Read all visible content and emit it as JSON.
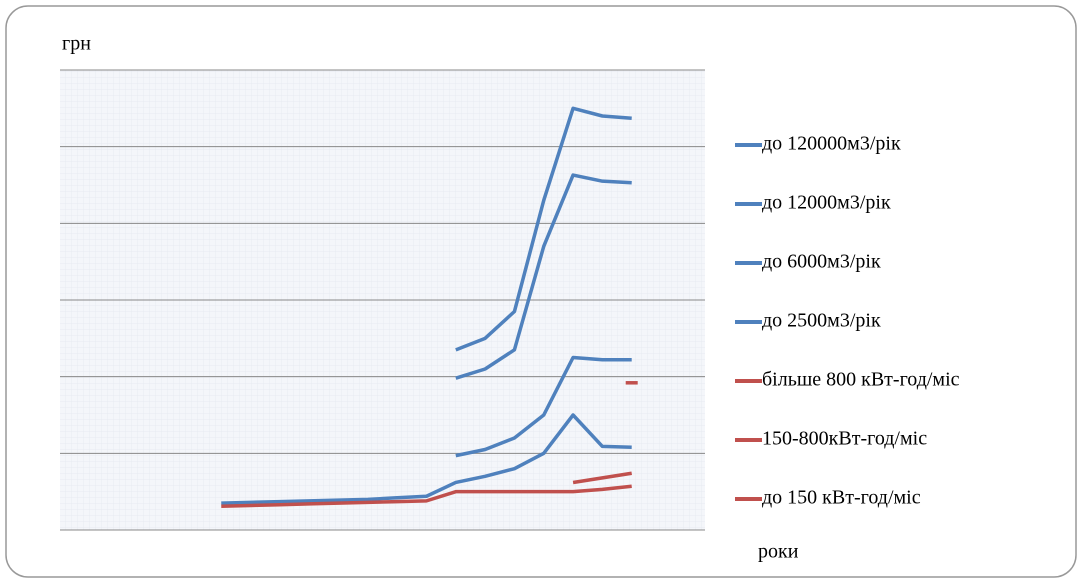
{
  "chart_data": {
    "type": "line",
    "y_label": "грн",
    "x_label": "роки",
    "categories": [
      null,
      null,
      null,
      null,
      null,
      null,
      null,
      null,
      null,
      null,
      null,
      null,
      null,
      null,
      null,
      null,
      null,
      null,
      null,
      null,
      null,
      null
    ],
    "ylim": [
      0,
      6
    ],
    "yticks": [
      0,
      1,
      2,
      3,
      4,
      5,
      6
    ],
    "grid": true,
    "legend": "right",
    "series": [
      {
        "name": "до 120000м3/рік",
        "color": "#4f81bd",
        "values": [
          null,
          null,
          null,
          null,
          null,
          null,
          null,
          null,
          null,
          null,
          null,
          null,
          null,
          2.35,
          2.5,
          2.85,
          4.3,
          5.5,
          5.4,
          5.37,
          null,
          null
        ]
      },
      {
        "name": "до 12000м3/рік",
        "color": "#4f81bd",
        "values": [
          null,
          null,
          null,
          null,
          null,
          null,
          null,
          null,
          null,
          null,
          null,
          null,
          null,
          1.98,
          2.1,
          2.35,
          3.7,
          4.63,
          4.55,
          4.53,
          null,
          null
        ]
      },
      {
        "name": "до 6000м3/рік",
        "color": "#4f81bd",
        "values": [
          null,
          null,
          null,
          null,
          null,
          null,
          null,
          null,
          null,
          null,
          null,
          null,
          null,
          0.97,
          1.05,
          1.2,
          1.5,
          2.25,
          2.22,
          2.22,
          null,
          null
        ]
      },
      {
        "name": "до 2500м3/рік",
        "color": "#4f81bd",
        "values": [
          null,
          null,
          null,
          null,
          null,
          0.35,
          0.36,
          0.37,
          0.38,
          0.39,
          0.4,
          0.42,
          0.44,
          0.62,
          0.7,
          0.8,
          1.0,
          1.5,
          1.09,
          1.08,
          null,
          null
        ]
      },
      {
        "name": "більше 800 кВт-год/міс",
        "color": "#c0504d",
        "values": [
          null,
          null,
          null,
          null,
          null,
          null,
          null,
          null,
          null,
          null,
          null,
          null,
          null,
          null,
          null,
          null,
          null,
          null,
          null,
          1.92,
          null,
          null
        ]
      },
      {
        "name": "150-800кВт-год/міс",
        "color": "#c0504d",
        "values": [
          null,
          null,
          null,
          null,
          null,
          null,
          null,
          null,
          null,
          null,
          null,
          null,
          null,
          null,
          null,
          null,
          null,
          0.62,
          0.68,
          0.74,
          null,
          null
        ]
      },
      {
        "name": "до 150 кВт-год/міс",
        "color": "#c0504d",
        "values": [
          null,
          null,
          null,
          null,
          null,
          0.31,
          0.32,
          0.33,
          0.34,
          0.35,
          0.36,
          0.37,
          0.38,
          0.5,
          0.5,
          0.5,
          0.5,
          0.5,
          0.53,
          0.57,
          null,
          null
        ]
      }
    ]
  }
}
